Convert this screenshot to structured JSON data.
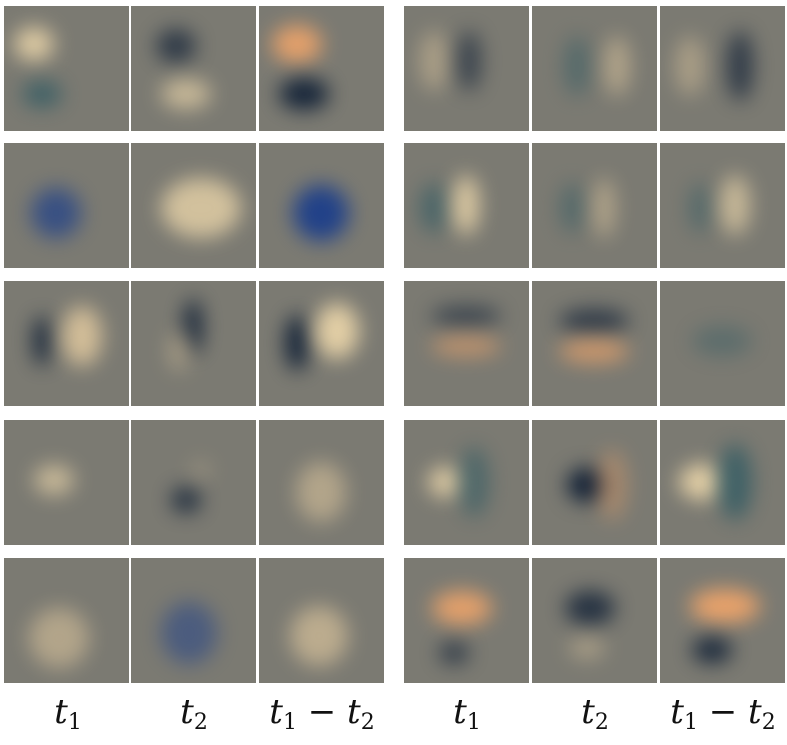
{
  "labels": {
    "left": [
      "t",
      "t",
      "t − t"
    ],
    "left_subs": [
      [
        "1"
      ],
      [
        "2"
      ],
      [
        "1",
        "2"
      ]
    ],
    "right": [
      "t",
      "t",
      "t − t"
    ],
    "right_subs": [
      [
        "1"
      ],
      [
        "2"
      ],
      [
        "1",
        "2"
      ]
    ]
  },
  "colors": {
    "tile_bg": "#7b7a72",
    "light_blob": "#e8d3a8",
    "dark_blob": "#102036",
    "blue_blob": "#1d3f8a",
    "orange_blob": "#f0a56a"
  }
}
